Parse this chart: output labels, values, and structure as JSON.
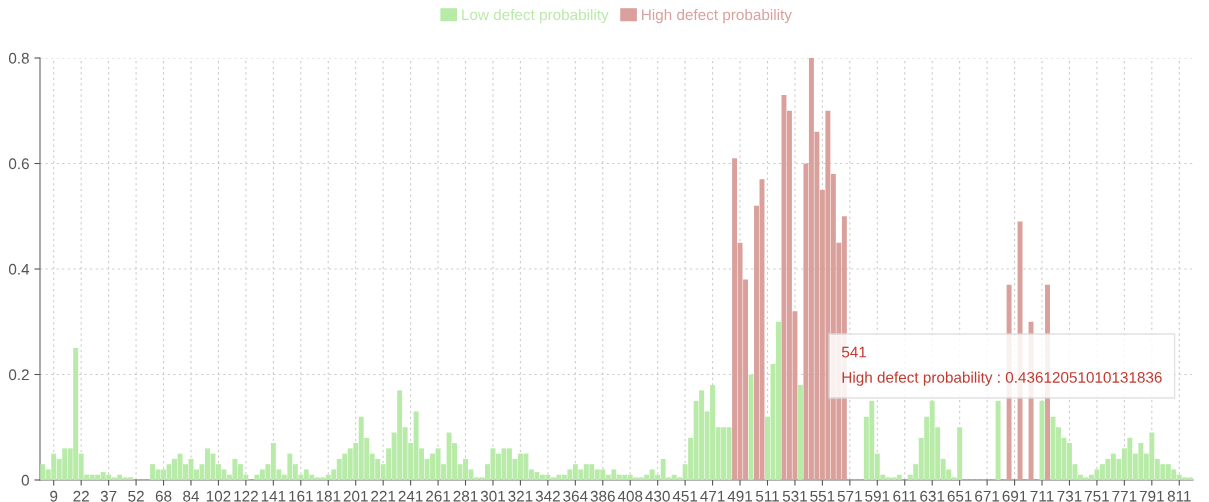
{
  "chart_data": {
    "type": "bar",
    "categories": [
      null,
      null,
      "9",
      null,
      null,
      null,
      null,
      "22",
      null,
      null,
      null,
      null,
      "37",
      null,
      null,
      null,
      null,
      "52",
      null,
      null,
      null,
      null,
      "68",
      null,
      null,
      null,
      null,
      "84",
      null,
      null,
      null,
      null,
      "102",
      null,
      null,
      null,
      null,
      "122",
      null,
      null,
      null,
      null,
      "141",
      null,
      null,
      null,
      null,
      "161",
      null,
      null,
      null,
      null,
      "181",
      null,
      null,
      null,
      null,
      "201",
      null,
      null,
      null,
      null,
      "221",
      null,
      null,
      null,
      null,
      "241",
      null,
      null,
      null,
      null,
      "261",
      null,
      null,
      null,
      null,
      "281",
      null,
      null,
      null,
      null,
      "301",
      null,
      null,
      null,
      null,
      "321",
      null,
      null,
      null,
      null,
      "342",
      null,
      null,
      null,
      null,
      "364",
      null,
      null,
      null,
      null,
      "386",
      null,
      null,
      null,
      null,
      "408",
      null,
      null,
      null,
      null,
      "430",
      null,
      null,
      null,
      null,
      "451",
      null,
      null,
      null,
      null,
      "471",
      null,
      null,
      null,
      null,
      "491",
      null,
      null,
      null,
      null,
      "511",
      null,
      null,
      null,
      null,
      "531",
      null,
      null,
      null,
      null,
      "551",
      null,
      null,
      null,
      null,
      "571",
      null,
      null,
      null,
      null,
      "591",
      null,
      null,
      null,
      null,
      "611",
      null,
      null,
      null,
      null,
      "631",
      null,
      null,
      null,
      null,
      "651",
      null,
      null,
      null,
      null,
      "671",
      null,
      null,
      null,
      null,
      "691",
      null,
      null,
      null,
      null,
      "711",
      null,
      null,
      null,
      null,
      "731",
      null,
      null,
      null,
      null,
      "751",
      null,
      null,
      null,
      null,
      "771",
      null,
      null,
      null,
      null,
      "791",
      null,
      null,
      null,
      null,
      "811",
      null,
      null
    ],
    "series": [
      {
        "name": "Low defect probability",
        "color": "#b8eaa8",
        "values": [
          0.03,
          0.02,
          0.05,
          0.04,
          0.06,
          0.06,
          0.25,
          0.05,
          0.01,
          0.01,
          0.01,
          0.015,
          0.01,
          0.005,
          0.01,
          0.005,
          0.005,
          0,
          0,
          0,
          0.03,
          0.02,
          0.02,
          0.03,
          0.04,
          0.05,
          0.03,
          0.04,
          0.02,
          0.03,
          0.06,
          0.05,
          0.03,
          0.02,
          0.01,
          0.04,
          0.03,
          0.01,
          0,
          0.01,
          0.02,
          0.03,
          0.07,
          0.02,
          0.01,
          0.05,
          0.03,
          0.01,
          0.02,
          0.01,
          0.005,
          0.005,
          0.01,
          0.02,
          0.04,
          0.05,
          0.06,
          0.07,
          0.12,
          0.08,
          0.05,
          0.04,
          0.03,
          0.06,
          0.09,
          0.17,
          0.1,
          0.07,
          0.13,
          0.06,
          0.04,
          0.05,
          0.06,
          0.03,
          0.09,
          0.07,
          0.03,
          0.04,
          0.02,
          0.005,
          0.005,
          0.03,
          0.06,
          0.05,
          0.06,
          0.06,
          0.04,
          0.05,
          0.05,
          0.02,
          0.015,
          0.01,
          0.01,
          0.005,
          0.01,
          0.01,
          0.02,
          0.03,
          0.02,
          0.03,
          0.03,
          0.02,
          0.02,
          0.01,
          0.02,
          0.01,
          0.01,
          0.01,
          0.005,
          0.005,
          0.01,
          0.02,
          0.01,
          0.04,
          0.005,
          0.01,
          0.005,
          0.03,
          0.08,
          0.15,
          0.17,
          0.13,
          0.18,
          0.1,
          0.1,
          0.1,
          null,
          null,
          null,
          0.2,
          null,
          null,
          0.12,
          0.22,
          0.3,
          null,
          null,
          null,
          0.18,
          null,
          null,
          null,
          null,
          null,
          null,
          null,
          null,
          null,
          null,
          null,
          0.12,
          0.15,
          0.05,
          0.01,
          0.005,
          0.005,
          0.01,
          0,
          0.01,
          0.03,
          0.08,
          0.12,
          0.15,
          0.1,
          0.04,
          0.02,
          0.005,
          0.1,
          null,
          null,
          null,
          null,
          null,
          null,
          0.15,
          null,
          null,
          null,
          null,
          null,
          null,
          null,
          0.15,
          null,
          0.12,
          0.1,
          0.08,
          0.07,
          0.03,
          0.01,
          0.005,
          0.01,
          0.02,
          0.03,
          0.04,
          0.05,
          0.04,
          0.06,
          0.08,
          0.05,
          0.07,
          0.05,
          0.09,
          0.04,
          0.03,
          0.03,
          0.02,
          0.01,
          0.005,
          0.005
        ]
      },
      {
        "name": "High defect probability",
        "color": "#d9a09c",
        "values": [
          null,
          null,
          null,
          null,
          null,
          null,
          null,
          null,
          null,
          null,
          null,
          null,
          null,
          null,
          null,
          null,
          null,
          null,
          null,
          null,
          null,
          null,
          null,
          null,
          null,
          null,
          null,
          null,
          null,
          null,
          null,
          null,
          null,
          null,
          null,
          null,
          null,
          null,
          null,
          null,
          null,
          null,
          null,
          null,
          null,
          null,
          null,
          null,
          null,
          null,
          null,
          null,
          null,
          null,
          null,
          null,
          null,
          null,
          null,
          null,
          null,
          null,
          null,
          null,
          null,
          null,
          null,
          null,
          null,
          null,
          null,
          null,
          null,
          null,
          null,
          null,
          null,
          null,
          null,
          null,
          null,
          null,
          null,
          null,
          null,
          null,
          null,
          null,
          null,
          null,
          null,
          null,
          null,
          null,
          null,
          null,
          null,
          null,
          null,
          null,
          null,
          null,
          null,
          null,
          null,
          null,
          null,
          null,
          null,
          null,
          null,
          null,
          null,
          null,
          null,
          null,
          null,
          null,
          null,
          null,
          null,
          null,
          null,
          null,
          null,
          null,
          0.61,
          0.45,
          0.38,
          null,
          0.52,
          0.57,
          null,
          null,
          null,
          0.73,
          0.7,
          0.32,
          null,
          0.6,
          0.8,
          0.66,
          0.55,
          0.7,
          0.58,
          0.45,
          0.5,
          null,
          null,
          null,
          null,
          null,
          null,
          null,
          null,
          null,
          null,
          null,
          null,
          null,
          null,
          null,
          null,
          null,
          null,
          null,
          null,
          null,
          null,
          null,
          null,
          null,
          null,
          null,
          null,
          null,
          0.37,
          null,
          0.49,
          null,
          0.3,
          null,
          null,
          0.37,
          null,
          null,
          null,
          null,
          null,
          null,
          null,
          null,
          null,
          null,
          null,
          null,
          null,
          null,
          null,
          null,
          null,
          null,
          null,
          null,
          null,
          null,
          null,
          null,
          null,
          null
        ]
      }
    ],
    "ylim": [
      0,
      0.8
    ],
    "yticks": [
      0,
      0.2,
      0.4,
      0.6,
      0.8
    ],
    "grid": true,
    "legend": "top",
    "annotations": [
      "541\nHigh defect probability : 0.43612051010131836"
    ]
  }
}
